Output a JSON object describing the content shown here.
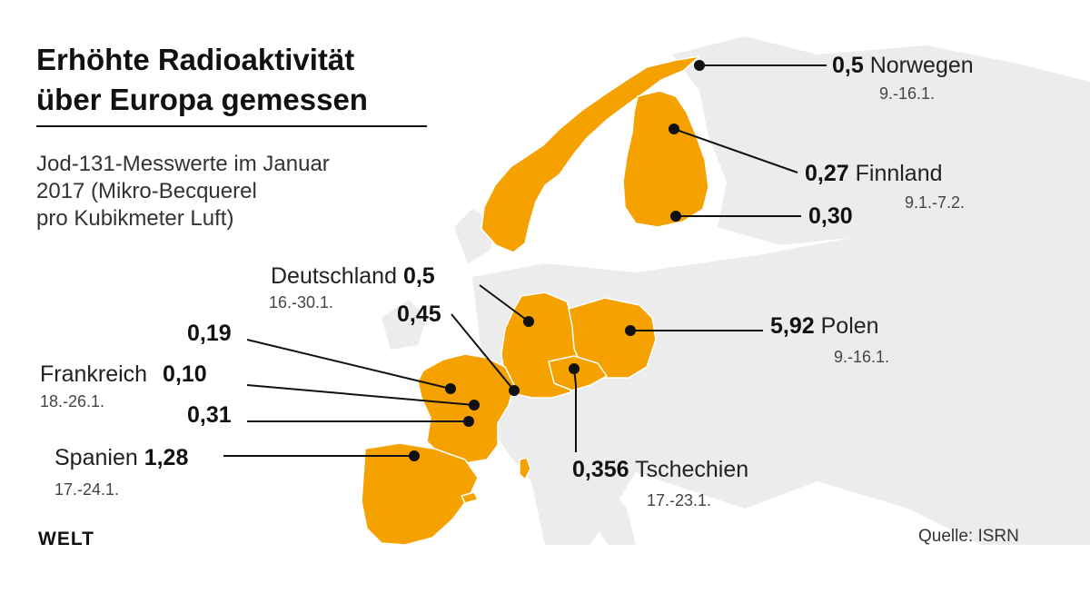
{
  "title": {
    "line1": "Erhöhte Radioaktivität",
    "line2": "über Europa gemessen"
  },
  "subtitle": {
    "line1": "Jod-131-Messwerte im Januar",
    "line2": "2017 (Mikro-Becquerel",
    "line3": "pro Kubikmeter Luft)"
  },
  "measurements": {
    "norway": {
      "value": "0,5",
      "country": "Norwegen",
      "period": "9.-16.1."
    },
    "finland_1": {
      "value": "0,27",
      "country": "Finnland",
      "period": "9.1.-7.2."
    },
    "finland_2": {
      "value": "0,30"
    },
    "germany": {
      "value": "0,5",
      "country": "Deutschland",
      "period": "16.-30.1."
    },
    "germany_2": {
      "value": "0,45"
    },
    "poland": {
      "value": "5,92",
      "country": "Polen",
      "period": "9.-16.1."
    },
    "france_1": {
      "value": "0,19"
    },
    "france_2": {
      "value": "0,10",
      "country": "Frankreich",
      "period": "18.-26.1."
    },
    "france_3": {
      "value": "0,31"
    },
    "spain": {
      "value": "1,28",
      "country": "Spanien",
      "period": "17.-24.1."
    },
    "czechia": {
      "value": "0,356",
      "country": "Tschechien",
      "period": "17.-23.1."
    }
  },
  "footer": {
    "logo": "WELT",
    "source": "Quelle: ISRN"
  },
  "colors": {
    "highlight": "#F5A100",
    "land": "#EDEDED",
    "border": "#FFFFFF",
    "line": "#111111"
  }
}
